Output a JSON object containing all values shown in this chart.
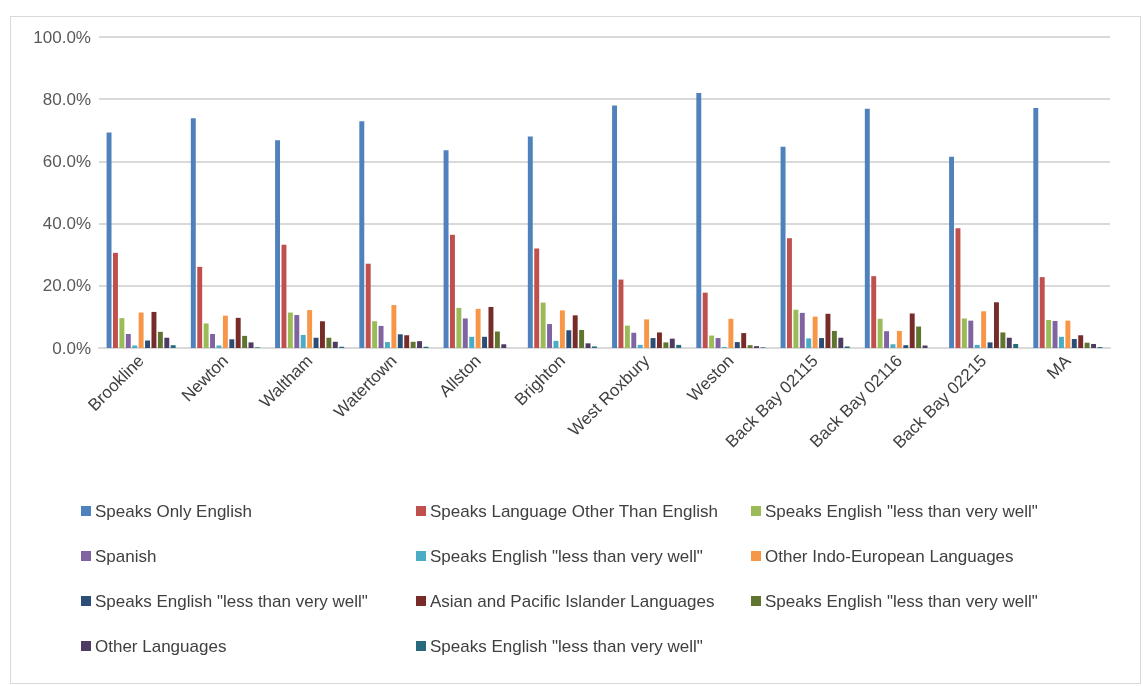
{
  "chart_data": {
    "type": "bar",
    "categories": [
      "Brookline",
      "Newton",
      "Waltham",
      "Watertown",
      "Allston",
      "Brighton",
      "West Roxbury",
      "Weston",
      "Back Bay 02115",
      "Back Bay 02116",
      "Back Bay 02215",
      "MA"
    ],
    "ylim": [
      0,
      100
    ],
    "yticks": [
      {
        "value": 0,
        "label": "0.0%"
      },
      {
        "value": 20,
        "label": "20.0%"
      },
      {
        "value": 40,
        "label": "40.0%"
      },
      {
        "value": 60,
        "label": "60.0%"
      },
      {
        "value": 80,
        "label": "80.0%"
      },
      {
        "value": 100,
        "label": "100.0%"
      }
    ],
    "grid": "y",
    "legend": "bottom",
    "series": [
      {
        "name": "Speaks Only English",
        "color": "#4f81bd",
        "values": [
          69.3,
          73.9,
          66.8,
          72.9,
          63.6,
          68.0,
          78.0,
          82.0,
          64.7,
          76.9,
          61.5,
          77.2
        ]
      },
      {
        "name": "Speaks Language Other Than English",
        "color": "#c0504d",
        "values": [
          30.6,
          26.1,
          33.2,
          27.1,
          36.4,
          32.0,
          22.0,
          17.8,
          35.3,
          23.1,
          38.5,
          22.8
        ]
      },
      {
        "name": "Speaks English \"less than very well\"",
        "color": "#9bbb59",
        "values": [
          9.6,
          7.9,
          11.4,
          8.6,
          12.9,
          14.6,
          7.2,
          4.0,
          12.3,
          9.4,
          9.5,
          9.0
        ]
      },
      {
        "name": "Spanish",
        "color": "#8064a2",
        "values": [
          4.5,
          4.5,
          10.6,
          7.1,
          9.5,
          7.7,
          4.9,
          3.2,
          11.3,
          5.4,
          8.8,
          8.7
        ]
      },
      {
        "name": "Speaks English \"less than very well\"",
        "color": "#4bacc6",
        "values": [
          0.8,
          0.8,
          4.2,
          1.9,
          3.6,
          2.3,
          1.0,
          0.3,
          3.1,
          1.2,
          1.0,
          3.6
        ]
      },
      {
        "name": "Other Indo-European Languages",
        "color": "#f79646",
        "values": [
          11.4,
          10.4,
          12.2,
          13.8,
          12.6,
          12.1,
          9.2,
          9.4,
          10.1,
          5.5,
          11.8,
          8.8
        ]
      },
      {
        "name": "Speaks English \"less than very well\"",
        "color": "#2c4d75",
        "values": [
          2.4,
          2.8,
          3.3,
          4.4,
          3.6,
          5.7,
          3.2,
          1.9,
          3.2,
          0.9,
          1.8,
          2.9
        ]
      },
      {
        "name": "Asian and Pacific Islander Languages",
        "color": "#772c2a",
        "values": [
          11.6,
          9.7,
          8.6,
          4.1,
          13.2,
          10.5,
          5.0,
          4.8,
          11.0,
          11.1,
          14.7,
          4.1
        ]
      },
      {
        "name": "Speaks English \"less than very well\"",
        "color": "#5f7530",
        "values": [
          5.2,
          3.9,
          3.3,
          2.0,
          5.3,
          5.8,
          1.8,
          0.9,
          5.5,
          6.9,
          5.0,
          1.7
        ]
      },
      {
        "name": "Other Languages",
        "color": "#4d3b62",
        "values": [
          3.3,
          1.8,
          2.0,
          2.2,
          1.2,
          1.5,
          3.0,
          0.6,
          3.3,
          0.8,
          3.3,
          1.3
        ]
      },
      {
        "name": "Speaks English \"less than very well\"",
        "color": "#276a7c",
        "values": [
          0.9,
          0.2,
          0.4,
          0.4,
          null,
          0.5,
          1.0,
          0.2,
          0.5,
          null,
          1.3,
          0.3
        ]
      }
    ]
  }
}
